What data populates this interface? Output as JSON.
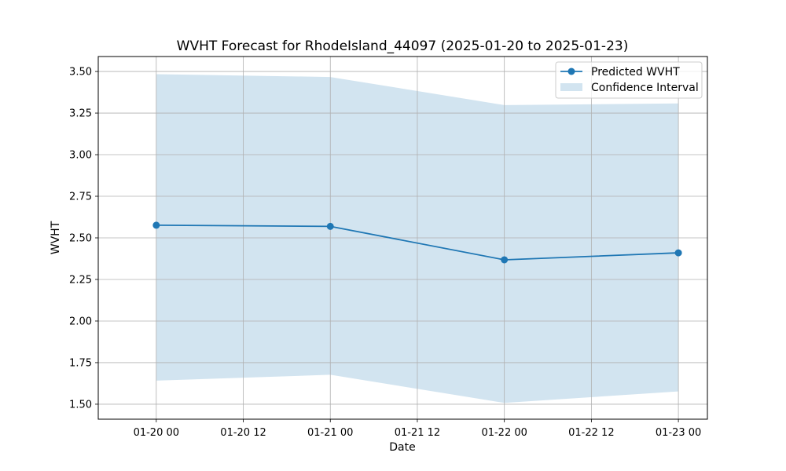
{
  "chart_data": {
    "type": "line",
    "title": "WVHT Forecast for RhodeIsland_44097 (2025-01-20 to 2025-01-23)",
    "xlabel": "Date",
    "ylabel": "WVHT",
    "x": [
      "2025-01-20 00:00",
      "2025-01-21 00:00",
      "2025-01-22 00:00",
      "2025-01-23 00:00"
    ],
    "xlim": [
      "2025-01-19 16:00",
      "2025-01-23 04:00"
    ],
    "x_ticks": [
      {
        "value": "2025-01-20 00:00",
        "label": "01-20 00"
      },
      {
        "value": "2025-01-20 12:00",
        "label": "01-20 12"
      },
      {
        "value": "2025-01-21 00:00",
        "label": "01-21 00"
      },
      {
        "value": "2025-01-21 12:00",
        "label": "01-21 12"
      },
      {
        "value": "2025-01-22 00:00",
        "label": "01-22 00"
      },
      {
        "value": "2025-01-22 12:00",
        "label": "01-22 12"
      },
      {
        "value": "2025-01-23 00:00",
        "label": "01-23 00"
      }
    ],
    "ylim": [
      1.41,
      3.59
    ],
    "y_ticks": [
      1.5,
      1.75,
      2.0,
      2.25,
      2.5,
      2.75,
      3.0,
      3.25,
      3.5
    ],
    "y_tick_labels": [
      "1.50",
      "1.75",
      "2.00",
      "2.25",
      "2.50",
      "2.75",
      "3.00",
      "3.25",
      "3.50"
    ],
    "series": [
      {
        "name": "Predicted WVHT",
        "values": [
          2.576,
          2.569,
          2.368,
          2.41
        ],
        "color": "#1f77b4",
        "marker": "circle"
      }
    ],
    "band": {
      "name": "Confidence Interval",
      "lower": [
        1.642,
        1.677,
        1.508,
        1.577
      ],
      "upper": [
        3.484,
        3.467,
        3.298,
        3.308
      ],
      "color": "#1f77b4",
      "opacity": 0.2
    },
    "grid": true,
    "legend": "top-right"
  }
}
